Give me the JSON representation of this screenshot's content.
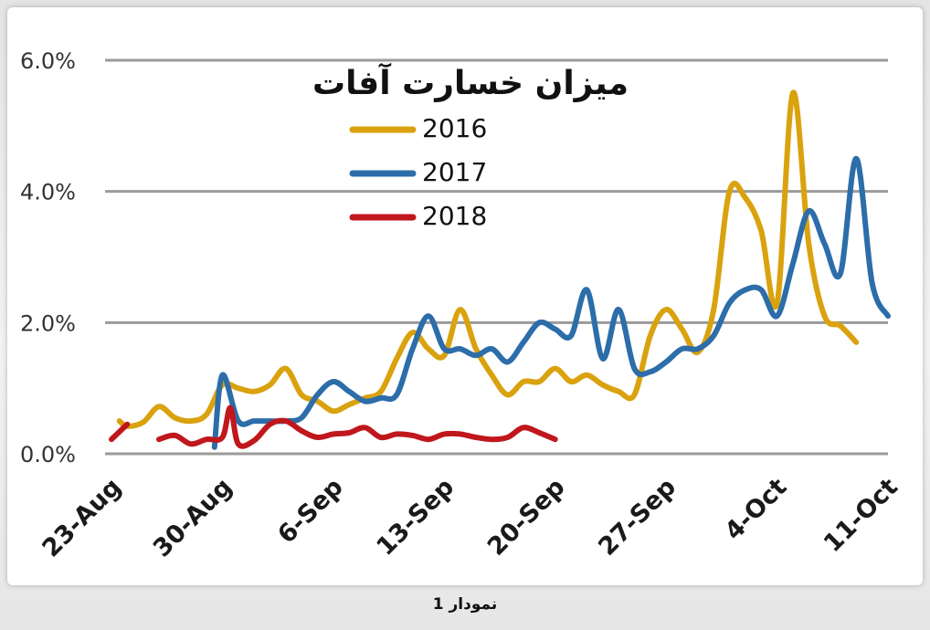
{
  "caption": "نمودار 1",
  "chart_data": {
    "type": "line",
    "title": "میزان خسارت آفات",
    "xlabel": "",
    "ylabel": "",
    "x_tick_labels": [
      "23-Aug",
      "30-Aug",
      "6-Sep",
      "13-Sep",
      "20-Sep",
      "27-Sep",
      "4-Oct",
      "11-Oct"
    ],
    "x_start": "2018-08-23",
    "x_range_days": [
      0,
      49
    ],
    "y_ticks": [
      "0.0%",
      "2.0%",
      "4.0%",
      "6.0%"
    ],
    "ylim": [
      0,
      6
    ],
    "grid": true,
    "legend_position": "top-center",
    "series": [
      {
        "name": "2016",
        "color": "#D9A20E",
        "points": [
          [
            0.5,
            0.5
          ],
          [
            1,
            0.42
          ],
          [
            2,
            0.48
          ],
          [
            3,
            0.72
          ],
          [
            4,
            0.55
          ],
          [
            5,
            0.5
          ],
          [
            6,
            0.6
          ],
          [
            7,
            1.05
          ],
          [
            8,
            1.0
          ],
          [
            9,
            0.95
          ],
          [
            10,
            1.05
          ],
          [
            11,
            1.3
          ],
          [
            12,
            0.9
          ],
          [
            13,
            0.8
          ],
          [
            14,
            0.65
          ],
          [
            15,
            0.75
          ],
          [
            16,
            0.85
          ],
          [
            17,
            0.95
          ],
          [
            18,
            1.45
          ],
          [
            19,
            1.85
          ],
          [
            20,
            1.6
          ],
          [
            21,
            1.5
          ],
          [
            22,
            2.2
          ],
          [
            23,
            1.6
          ],
          [
            24,
            1.2
          ],
          [
            25,
            0.9
          ],
          [
            26,
            1.1
          ],
          [
            27,
            1.1
          ],
          [
            28,
            1.3
          ],
          [
            29,
            1.1
          ],
          [
            30,
            1.2
          ],
          [
            31,
            1.05
          ],
          [
            32,
            0.95
          ],
          [
            33,
            0.9
          ],
          [
            34,
            1.8
          ],
          [
            35,
            2.2
          ],
          [
            36,
            1.9
          ],
          [
            37,
            1.55
          ],
          [
            38,
            2.2
          ],
          [
            39,
            4.0
          ],
          [
            40,
            3.9
          ],
          [
            41,
            3.4
          ],
          [
            42,
            2.3
          ],
          [
            43,
            5.5
          ],
          [
            44,
            3.2
          ],
          [
            45,
            2.1
          ],
          [
            46,
            1.95
          ],
          [
            47,
            1.7
          ]
        ]
      },
      {
        "name": "2017",
        "color": "#2C6DAA",
        "points": [
          [
            6.5,
            0.1
          ],
          [
            7,
            1.2
          ],
          [
            8,
            0.5
          ],
          [
            9,
            0.5
          ],
          [
            10,
            0.5
          ],
          [
            11,
            0.5
          ],
          [
            12,
            0.55
          ],
          [
            13,
            0.9
          ],
          [
            14,
            1.1
          ],
          [
            15,
            0.95
          ],
          [
            16,
            0.8
          ],
          [
            17,
            0.85
          ],
          [
            18,
            0.9
          ],
          [
            19,
            1.6
          ],
          [
            20,
            2.1
          ],
          [
            21,
            1.6
          ],
          [
            22,
            1.6
          ],
          [
            23,
            1.5
          ],
          [
            24,
            1.6
          ],
          [
            25,
            1.4
          ],
          [
            26,
            1.7
          ],
          [
            27,
            2.0
          ],
          [
            28,
            1.9
          ],
          [
            29,
            1.8
          ],
          [
            30,
            2.5
          ],
          [
            31,
            1.45
          ],
          [
            32,
            2.2
          ],
          [
            33,
            1.3
          ],
          [
            34,
            1.25
          ],
          [
            35,
            1.4
          ],
          [
            36,
            1.6
          ],
          [
            37,
            1.6
          ],
          [
            38,
            1.8
          ],
          [
            39,
            2.3
          ],
          [
            40,
            2.5
          ],
          [
            41,
            2.5
          ],
          [
            42,
            2.1
          ],
          [
            43,
            2.9
          ],
          [
            44,
            3.7
          ],
          [
            45,
            3.2
          ],
          [
            46,
            2.75
          ],
          [
            47,
            4.5
          ],
          [
            48,
            2.6
          ],
          [
            49,
            2.1
          ]
        ]
      },
      {
        "name": "2018",
        "color": "#C0171D",
        "points": [
          [
            0,
            0.22
          ],
          [
            1,
            0.45
          ],
          [
            3,
            0.22
          ],
          [
            4,
            0.28
          ],
          [
            5,
            0.15
          ],
          [
            6,
            0.22
          ],
          [
            7,
            0.25
          ],
          [
            7.5,
            0.7
          ],
          [
            8,
            0.15
          ],
          [
            9,
            0.2
          ],
          [
            10,
            0.45
          ],
          [
            11,
            0.5
          ],
          [
            12,
            0.35
          ],
          [
            13,
            0.25
          ],
          [
            14,
            0.3
          ],
          [
            15,
            0.32
          ],
          [
            16,
            0.4
          ],
          [
            17,
            0.25
          ],
          [
            18,
            0.3
          ],
          [
            19,
            0.28
          ],
          [
            20,
            0.22
          ],
          [
            21,
            0.3
          ],
          [
            22,
            0.3
          ],
          [
            23,
            0.25
          ],
          [
            24,
            0.22
          ],
          [
            25,
            0.25
          ],
          [
            26,
            0.4
          ],
          [
            27,
            0.32
          ],
          [
            28,
            0.22
          ]
        ]
      }
    ]
  }
}
